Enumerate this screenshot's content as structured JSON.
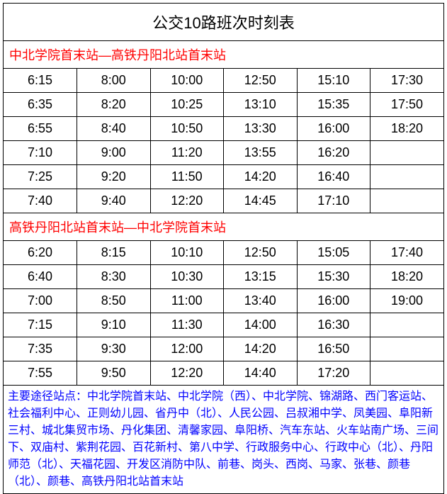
{
  "title": "公交10路班次时刻表",
  "colors": {
    "text": "#000000",
    "direction_text": "#ff0000",
    "stations_text": "#0000ff",
    "border": "#000000",
    "background": "#ffffff"
  },
  "schedules": [
    {
      "direction": "中北学院首末站—高铁丹阳北站首末站",
      "rows": [
        [
          "6:15",
          "8:00",
          "10:00",
          "12:50",
          "15:10",
          "17:30"
        ],
        [
          "6:35",
          "8:20",
          "10:25",
          "13:10",
          "15:35",
          "17:50"
        ],
        [
          "6:55",
          "8:40",
          "10:50",
          "13:30",
          "16:00",
          "18:20"
        ],
        [
          "7:10",
          "9:00",
          "11:20",
          "13:55",
          "16:20",
          ""
        ],
        [
          "7:25",
          "9:20",
          "11:50",
          "14:20",
          "16:40",
          ""
        ],
        [
          "7:40",
          "9:40",
          "12:20",
          "14:45",
          "17:10",
          ""
        ]
      ]
    },
    {
      "direction": "高铁丹阳北站首末站—中北学院首末站",
      "rows": [
        [
          "6:20",
          "8:15",
          "10:10",
          "12:50",
          "15:05",
          "17:40"
        ],
        [
          "6:40",
          "8:30",
          "10:30",
          "13:15",
          "15:30",
          "18:20"
        ],
        [
          "7:00",
          "8:50",
          "11:00",
          "13:40",
          "16:00",
          "19:00"
        ],
        [
          "7:15",
          "9:10",
          "11:30",
          "14:00",
          "16:30",
          ""
        ],
        [
          "7:35",
          "9:30",
          "12:00",
          "14:20",
          "16:50",
          ""
        ],
        [
          "7:55",
          "9:50",
          "12:20",
          "14:40",
          "17:20",
          ""
        ]
      ]
    }
  ],
  "stations": {
    "label": "主要途径站点：",
    "text": "中北学院首末站、中北学院（西）、中北学院、锦湖路、西门客运站、社会福利中心、正则幼儿园、省丹中（北）、人民公园、吕叔湘中学、凤美园、阜阳新三村、城北集贸市场、丹化集团、清馨家园、阜阳桥、汽车东站、火车站南广场、三间下、双庙村、紫荆花园、百花新村、第八中学、行政服务中心、行政中心（北）、丹阳师范（北）、天福花园、开发区消防中队、前巷、岗头、西岗、马家、张巷、颜巷（北）、颜巷、高铁丹阳北站首末站"
  }
}
